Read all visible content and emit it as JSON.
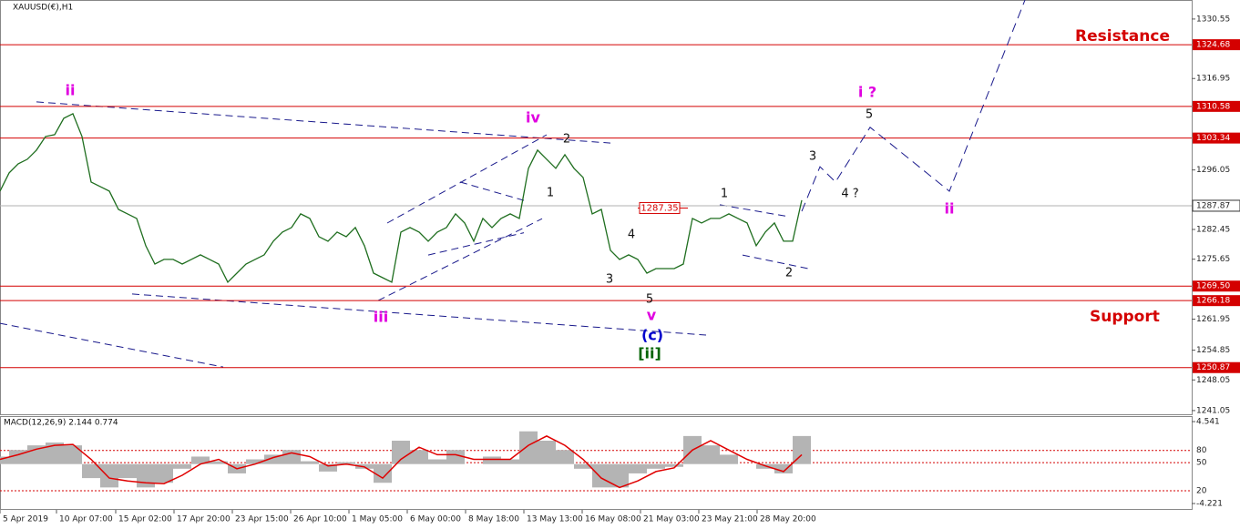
{
  "chart_data": [
    {
      "type": "line",
      "title": "XAUUSD(€),H1",
      "xlim": [
        0,
        1308
      ],
      "ylim": [
        1240.2,
        1334.9
      ],
      "yticks": [
        1330.55,
        1316.95,
        1296.05,
        1282.45,
        1275.65,
        1261.95,
        1254.85,
        1248.05,
        1241.05
      ],
      "series": [
        {
          "color": "#1f6e1f",
          "x": [
            0,
            10,
            20,
            30,
            40,
            50,
            60,
            70,
            80,
            90,
            100,
            110,
            120,
            130,
            140,
            150,
            160,
            170,
            180,
            190,
            200,
            210,
            220,
            230,
            240,
            250,
            260,
            270,
            280,
            290,
            300,
            310,
            320,
            330,
            340,
            350,
            360,
            370,
            380,
            390,
            400,
            410,
            420,
            430,
            440,
            450,
            460,
            470,
            480,
            490,
            500,
            510,
            520,
            530,
            540,
            550,
            560,
            570,
            580,
            590,
            600,
            610,
            620,
            630,
            640,
            650,
            660,
            670,
            680,
            690,
            700,
            710,
            720,
            730,
            740,
            750,
            760,
            770,
            780,
            790,
            800,
            810,
            820,
            830,
            840,
            850,
            860,
            870,
            880
          ],
          "values": [
            1291.21,
            1295.37,
            1297.45,
            1298.49,
            1300.57,
            1303.7,
            1304.11,
            1307.86,
            1308.9,
            1303.7,
            1293.29,
            1292.25,
            1291.21,
            1287.04,
            1286.0,
            1284.96,
            1278.72,
            1274.55,
            1275.6,
            1275.6,
            1274.55,
            1275.6,
            1276.64,
            1275.6,
            1274.55,
            1270.39,
            1272.47,
            1274.55,
            1275.6,
            1276.64,
            1279.76,
            1281.84,
            1282.88,
            1286.0,
            1284.96,
            1280.8,
            1279.76,
            1281.84,
            1280.8,
            1282.88,
            1278.72,
            1272.47,
            1271.43,
            1270.39,
            1281.84,
            1282.88,
            1281.84,
            1279.76,
            1281.84,
            1282.88,
            1286.0,
            1283.92,
            1279.76,
            1284.96,
            1282.88,
            1284.96,
            1286.0,
            1284.96,
            1296.41,
            1300.57,
            1298.49,
            1296.41,
            1299.53,
            1296.41,
            1294.33,
            1286.0,
            1287.04,
            1277.68,
            1275.6,
            1276.64,
            1275.6,
            1272.47,
            1273.51,
            1273.51,
            1273.51,
            1274.55,
            1284.96,
            1283.92,
            1284.96,
            1284.96,
            1286.0,
            1284.96,
            1283.92,
            1278.72,
            1281.84,
            1283.92,
            1279.76,
            1279.76,
            1289.13
          ]
        }
      ],
      "level_color": "#d40000",
      "levels": [
        1324.68,
        1310.58,
        1303.34,
        {
          "value": 1269.5,
          "label": "1269.50"
        },
        1266.18,
        1250.87
      ],
      "current_price": 1287.87,
      "price_marker": {
        "x": 725,
        "value": 1287.35
      },
      "trendline_color": "#1a1a8c",
      "trendlines": [
        {
          "x": [
            40,
            670
          ],
          "values": [
            1311.6,
            1302.2
          ]
        },
        {
          "x": [
            145,
            775
          ],
          "values": [
            1267.7,
            1258.3
          ]
        },
        {
          "x": [
            0,
            245
          ],
          "values": [
            1261.0,
            1251.0
          ]
        },
        {
          "x": [
            425,
            600
          ],
          "values": [
            1283.9,
            1304.1
          ]
        },
        {
          "x": [
            415,
            595
          ],
          "values": [
            1266.2,
            1284.9
          ]
        },
        {
          "x": [
            470,
            575
          ],
          "values": [
            1276.6,
            1281.7
          ]
        },
        {
          "x": [
            505,
            575
          ],
          "values": [
            1293.3,
            1289.1
          ]
        },
        {
          "x": [
            790,
            865
          ],
          "values": [
            1288.1,
            1285.4
          ]
        },
        {
          "x": [
            815,
            887
          ],
          "values": [
            1276.6,
            1273.5
          ]
        }
      ],
      "projection": {
        "x": [
          880,
          900,
          917,
          955,
          1042,
          1125
        ],
        "values": [
          1286.6,
          1296.8,
          1293.3,
          1305.8,
          1291.2,
          1334.9
        ]
      },
      "annotations": [
        {
          "text": "ii",
          "x": 77,
          "y": 1314.1,
          "color": "#e000e0"
        },
        {
          "text": "iv",
          "x": 585,
          "y": 1307.86,
          "color": "#e000e0"
        },
        {
          "text": "2",
          "x": 622,
          "y": 1303.07,
          "color": "#111111"
        },
        {
          "text": "1",
          "x": 604,
          "y": 1290.79,
          "color": "#111111"
        },
        {
          "text": "4",
          "x": 693,
          "y": 1281.22,
          "color": "#111111"
        },
        {
          "text": "3",
          "x": 669,
          "y": 1271.0,
          "color": "#111111"
        },
        {
          "text": "5",
          "x": 713,
          "y": 1266.4,
          "color": "#111111"
        },
        {
          "text": "v",
          "x": 715,
          "y": 1262.7,
          "color": "#e000e0"
        },
        {
          "text": "(c)",
          "x": 716,
          "y": 1258.1,
          "color": "#0000cc"
        },
        {
          "text": "[ii]",
          "x": 713,
          "y": 1253.95,
          "color": "#006400"
        },
        {
          "text": "iii",
          "x": 418,
          "y": 1262.27,
          "color": "#e000e0"
        },
        {
          "text": "1",
          "x": 795,
          "y": 1290.58,
          "color": "#111111"
        },
        {
          "text": "2",
          "x": 866,
          "y": 1272.47,
          "color": "#111111"
        },
        {
          "text": "3",
          "x": 892,
          "y": 1299.12,
          "color": "#111111"
        },
        {
          "text": "4 ?",
          "x": 933,
          "y": 1290.58,
          "color": "#111111"
        },
        {
          "text": "5",
          "x": 954,
          "y": 1308.7,
          "color": "#111111"
        },
        {
          "text": "i ?",
          "x": 952,
          "y": 1313.69,
          "color": "#e000e0"
        },
        {
          "text": "ii",
          "x": 1042,
          "y": 1287.04,
          "color": "#e000e0"
        },
        {
          "text": "Resistance",
          "x": 1180,
          "y": 1326.6,
          "color": "#d40000"
        },
        {
          "text": "Support",
          "x": 1196,
          "y": 1262.5,
          "color": "#d40000"
        }
      ]
    },
    {
      "type": "macd",
      "title": "MACD(12,26,9) 2.144 0.774",
      "xlim": [
        0,
        1308
      ],
      "ylim": [
        -4.9,
        5.13
      ],
      "xticks": [
        {
          "value": 0,
          "label": "5 Apr 2019"
        },
        {
          "value": 62,
          "label": "10 Apr 07:00"
        },
        {
          "value": 127,
          "label": "15 Apr 02:00"
        },
        {
          "value": 191,
          "label": "17 Apr 20:00"
        },
        {
          "value": 255,
          "label": "23 Apr 15:00"
        },
        {
          "value": 319,
          "label": "26 Apr 10:00"
        },
        {
          "value": 383,
          "label": "1 May 05:00"
        },
        {
          "value": 447,
          "label": "6 May 00:00"
        },
        {
          "value": 511,
          "label": "8 May 18:00"
        },
        {
          "value": 575,
          "label": "13 May 13:00"
        },
        {
          "value": 639,
          "label": "16 May 08:00"
        },
        {
          "value": 703,
          "label": "21 May 03:00"
        },
        {
          "value": 767,
          "label": "23 May 21:00"
        },
        {
          "value": 831,
          "label": "28 May 20:00"
        }
      ],
      "yticks": [
        4.541,
        -4.221
      ],
      "levels": [
        {
          "value": 1.46,
          "label": "80"
        },
        {
          "value": 0.15,
          "label": "50"
        },
        {
          "value": -2.86,
          "label": "20"
        }
      ],
      "x": [
        0,
        20,
        40,
        60,
        80,
        100,
        120,
        140,
        160,
        180,
        200,
        220,
        240,
        260,
        280,
        300,
        320,
        340,
        360,
        380,
        400,
        420,
        440,
        460,
        480,
        500,
        520,
        540,
        560,
        580,
        600,
        620,
        640,
        660,
        680,
        700,
        720,
        740,
        760,
        780,
        800,
        820,
        840,
        860,
        880
      ],
      "series": [
        {
          "color": "#b4b4b4",
          "values": [
            0.8,
            1.5,
            2.0,
            2.3,
            2.0,
            -1.5,
            -2.5,
            -1.5,
            -2.5,
            -2.0,
            -0.5,
            0.8,
            0.3,
            -1.0,
            0.5,
            1.0,
            1.5,
            0.3,
            -0.8,
            0.2,
            -0.5,
            -2.0,
            2.5,
            1.5,
            0.5,
            1.5,
            0.0,
            0.8,
            0.5,
            3.5,
            2.5,
            1.5,
            -0.5,
            -2.5,
            -2.5,
            -1.0,
            -0.5,
            -0.3,
            3.0,
            2.0,
            1.0,
            0.0,
            -0.5,
            -1.0,
            3.0
          ]
        },
        {
          "color": "#e00000",
          "values": [
            0.5,
            1.0,
            1.6,
            2.0,
            2.1,
            0.5,
            -1.5,
            -1.8,
            -2.0,
            -2.1,
            -1.2,
            0.0,
            0.5,
            -0.5,
            0.0,
            0.7,
            1.2,
            0.8,
            -0.2,
            0.0,
            -0.3,
            -1.5,
            0.5,
            1.8,
            1.0,
            1.0,
            0.5,
            0.5,
            0.5,
            2.0,
            3.0,
            2.0,
            0.5,
            -1.5,
            -2.5,
            -1.8,
            -0.8,
            -0.4,
            1.5,
            2.5,
            1.5,
            0.5,
            -0.2,
            -0.8,
            1.0
          ]
        }
      ]
    }
  ]
}
